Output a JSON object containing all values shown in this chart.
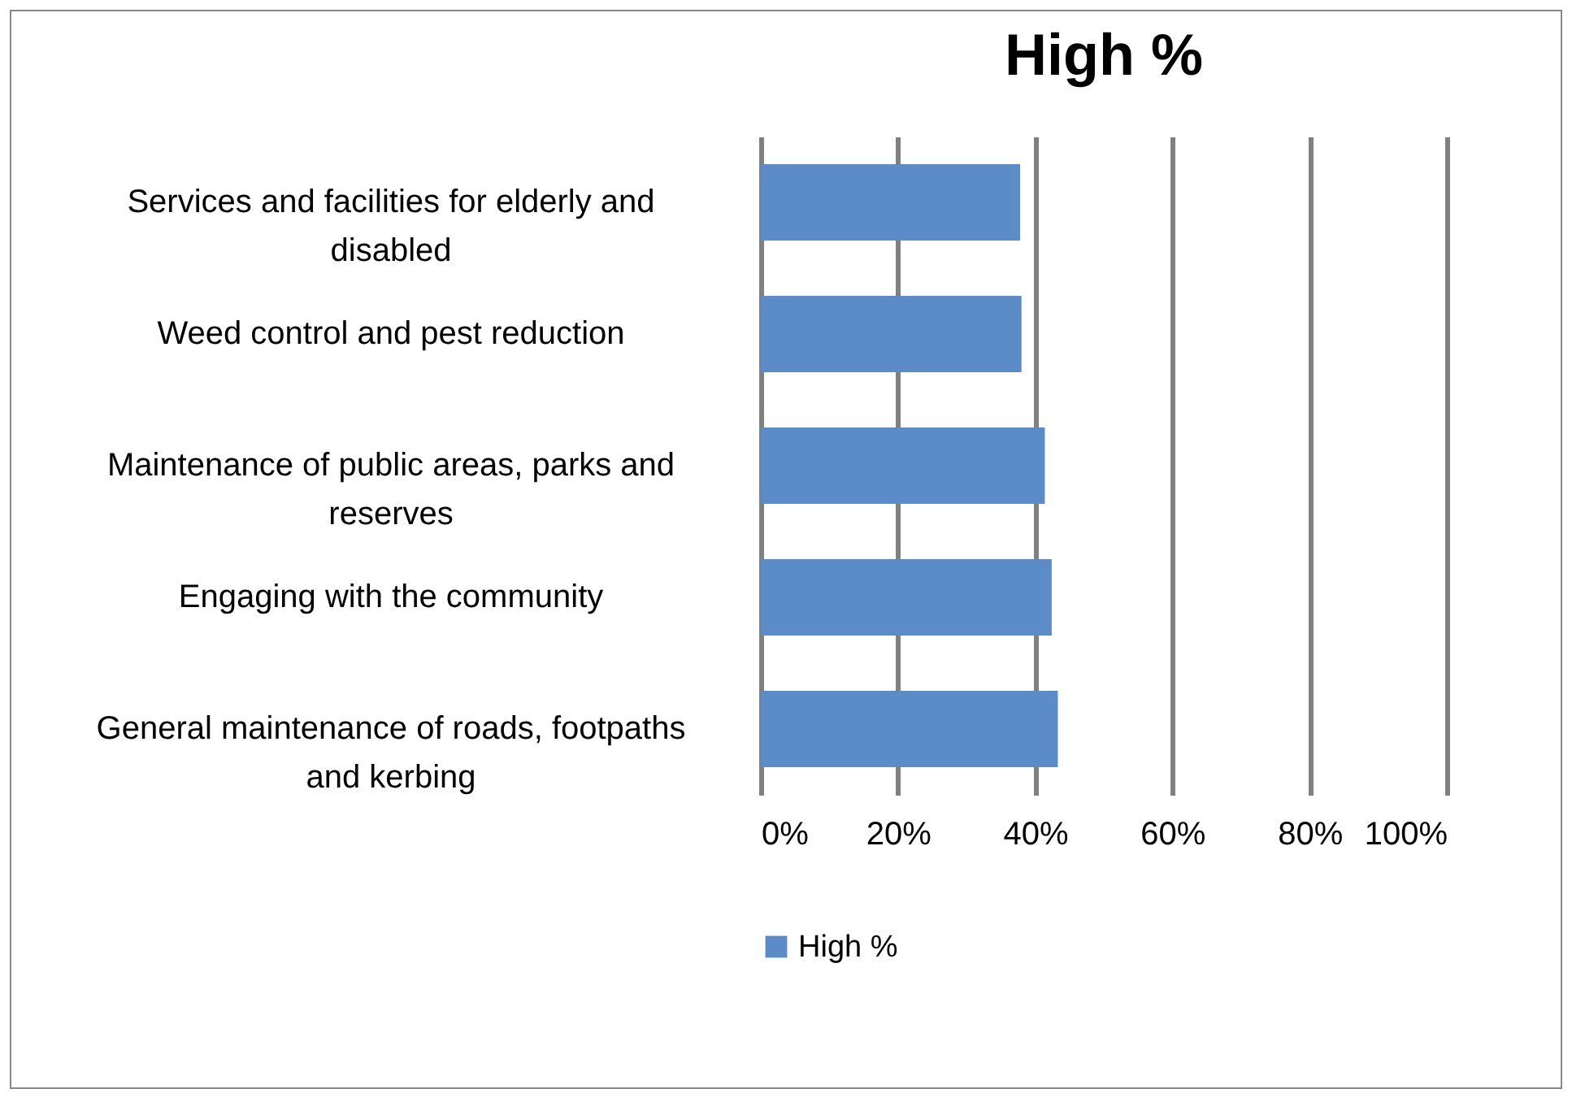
{
  "chart_data": {
    "type": "bar",
    "orientation": "horizontal",
    "title": "High %",
    "categories": [
      "Services and facilities for elderly and disabled",
      "Weed control and pest reduction",
      "Maintenance of public areas, parks and reserves",
      "Engaging with the community",
      "General maintenance of roads, footpaths and kerbing"
    ],
    "series": [
      {
        "name": "High %",
        "color": "#5b8cc8",
        "values": [
          37.8,
          38.0,
          41.4,
          42.4,
          43.3
        ]
      }
    ],
    "xlim": [
      0,
      100
    ],
    "xticks": [
      {
        "value": 0,
        "label": "0%"
      },
      {
        "value": 20,
        "label": "20%"
      },
      {
        "value": 40,
        "label": "40%"
      },
      {
        "value": 60,
        "label": "60%"
      },
      {
        "value": 80,
        "label": "80%"
      },
      {
        "value": 100,
        "label": "100%"
      }
    ],
    "grid": "x",
    "legend": "bottom"
  }
}
